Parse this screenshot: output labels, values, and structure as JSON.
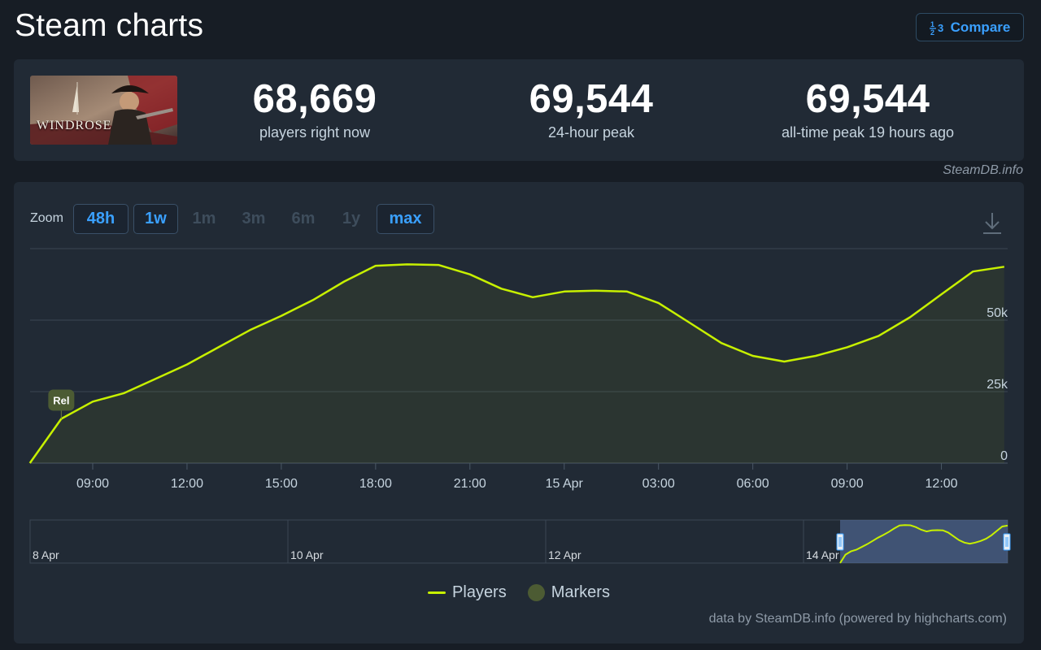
{
  "header": {
    "title": "Steam charts",
    "compare_label": "Compare"
  },
  "game": {
    "thumb_text": "WINDROSE"
  },
  "stats": {
    "now_value": "68,669",
    "now_label": "players right now",
    "peak24_value": "69,544",
    "peak24_label": "24-hour peak",
    "alltime_value": "69,544",
    "alltime_label": "all-time peak 19 hours ago"
  },
  "credit_top": "SteamDB.info",
  "zoom": {
    "label": "Zoom",
    "buttons": [
      {
        "label": "48h",
        "state": "active"
      },
      {
        "label": "1w",
        "state": "active"
      },
      {
        "label": "1m",
        "state": "disabled"
      },
      {
        "label": "3m",
        "state": "disabled"
      },
      {
        "label": "6m",
        "state": "disabled"
      },
      {
        "label": "1y",
        "state": "disabled"
      },
      {
        "label": "max",
        "state": "active"
      }
    ]
  },
  "legend": {
    "players": "Players",
    "markers": "Markers"
  },
  "credit_bottom": "data by SteamDB.info (powered by highcharts.com)",
  "colors": {
    "line": "#c7f000",
    "accent": "#3aa0ff",
    "marker": "#4c5b33"
  },
  "chart_data": {
    "type": "line",
    "x_tick_labels": [
      "09:00",
      "12:00",
      "15:00",
      "18:00",
      "21:00",
      "15 Apr",
      "03:00",
      "06:00",
      "09:00",
      "12:00"
    ],
    "y_tick_labels": [
      "0",
      "25k",
      "50k"
    ],
    "ylim": [
      0,
      75000
    ],
    "x_hours": [
      0,
      1,
      2,
      3,
      4,
      5,
      6,
      7,
      8,
      9,
      10,
      11,
      12,
      13,
      14,
      15,
      16,
      17,
      18,
      19,
      20,
      21,
      22,
      23,
      24,
      25,
      26,
      27,
      28,
      29,
      30,
      31
    ],
    "series": [
      {
        "name": "Players",
        "values": [
          0,
          15500,
          21500,
          24500,
          29500,
          34500,
          40500,
          46500,
          51500,
          57000,
          63500,
          69000,
          69500,
          69300,
          66000,
          61000,
          58000,
          60000,
          60300,
          60000,
          56000,
          49000,
          42000,
          37500,
          35500,
          37500,
          40500,
          44500,
          51000,
          59000,
          67000,
          68669
        ]
      }
    ],
    "markers": [
      {
        "label": "Rel",
        "x": 1
      }
    ],
    "navigator": {
      "date_labels": [
        "8 Apr",
        "10 Apr",
        "12 Apr",
        "14 Apr"
      ]
    }
  }
}
